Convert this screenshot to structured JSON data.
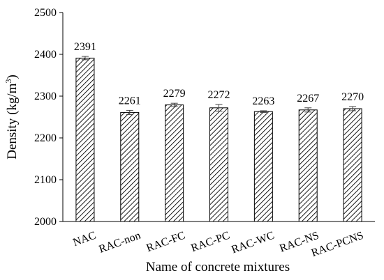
{
  "chart_data": {
    "type": "bar",
    "title": "",
    "xlabel": "Name of concrete mixtures",
    "ylabel_main": "Density (kg/m",
    "ylabel_sup": "3",
    "ylabel_close": ")",
    "ylim": [
      2000,
      2500
    ],
    "yticks": [
      2000,
      2100,
      2200,
      2300,
      2400,
      2500
    ],
    "grid": false,
    "bar_fill": "diagonal-hatch",
    "bar_color": "#000000",
    "categories": [
      "NAC",
      "RAC-non",
      "RAC-FC",
      "RAC-PC",
      "RAC-WC",
      "RAC-NS",
      "RAC-PCNS"
    ],
    "values": [
      2391,
      2261,
      2279,
      2272,
      2263,
      2267,
      2270
    ],
    "labels": [
      "2391",
      "2261",
      "2279",
      "2272",
      "2263",
      "2267",
      "2270"
    ],
    "errors": [
      4,
      5,
      4,
      8,
      2,
      5,
      5
    ]
  }
}
